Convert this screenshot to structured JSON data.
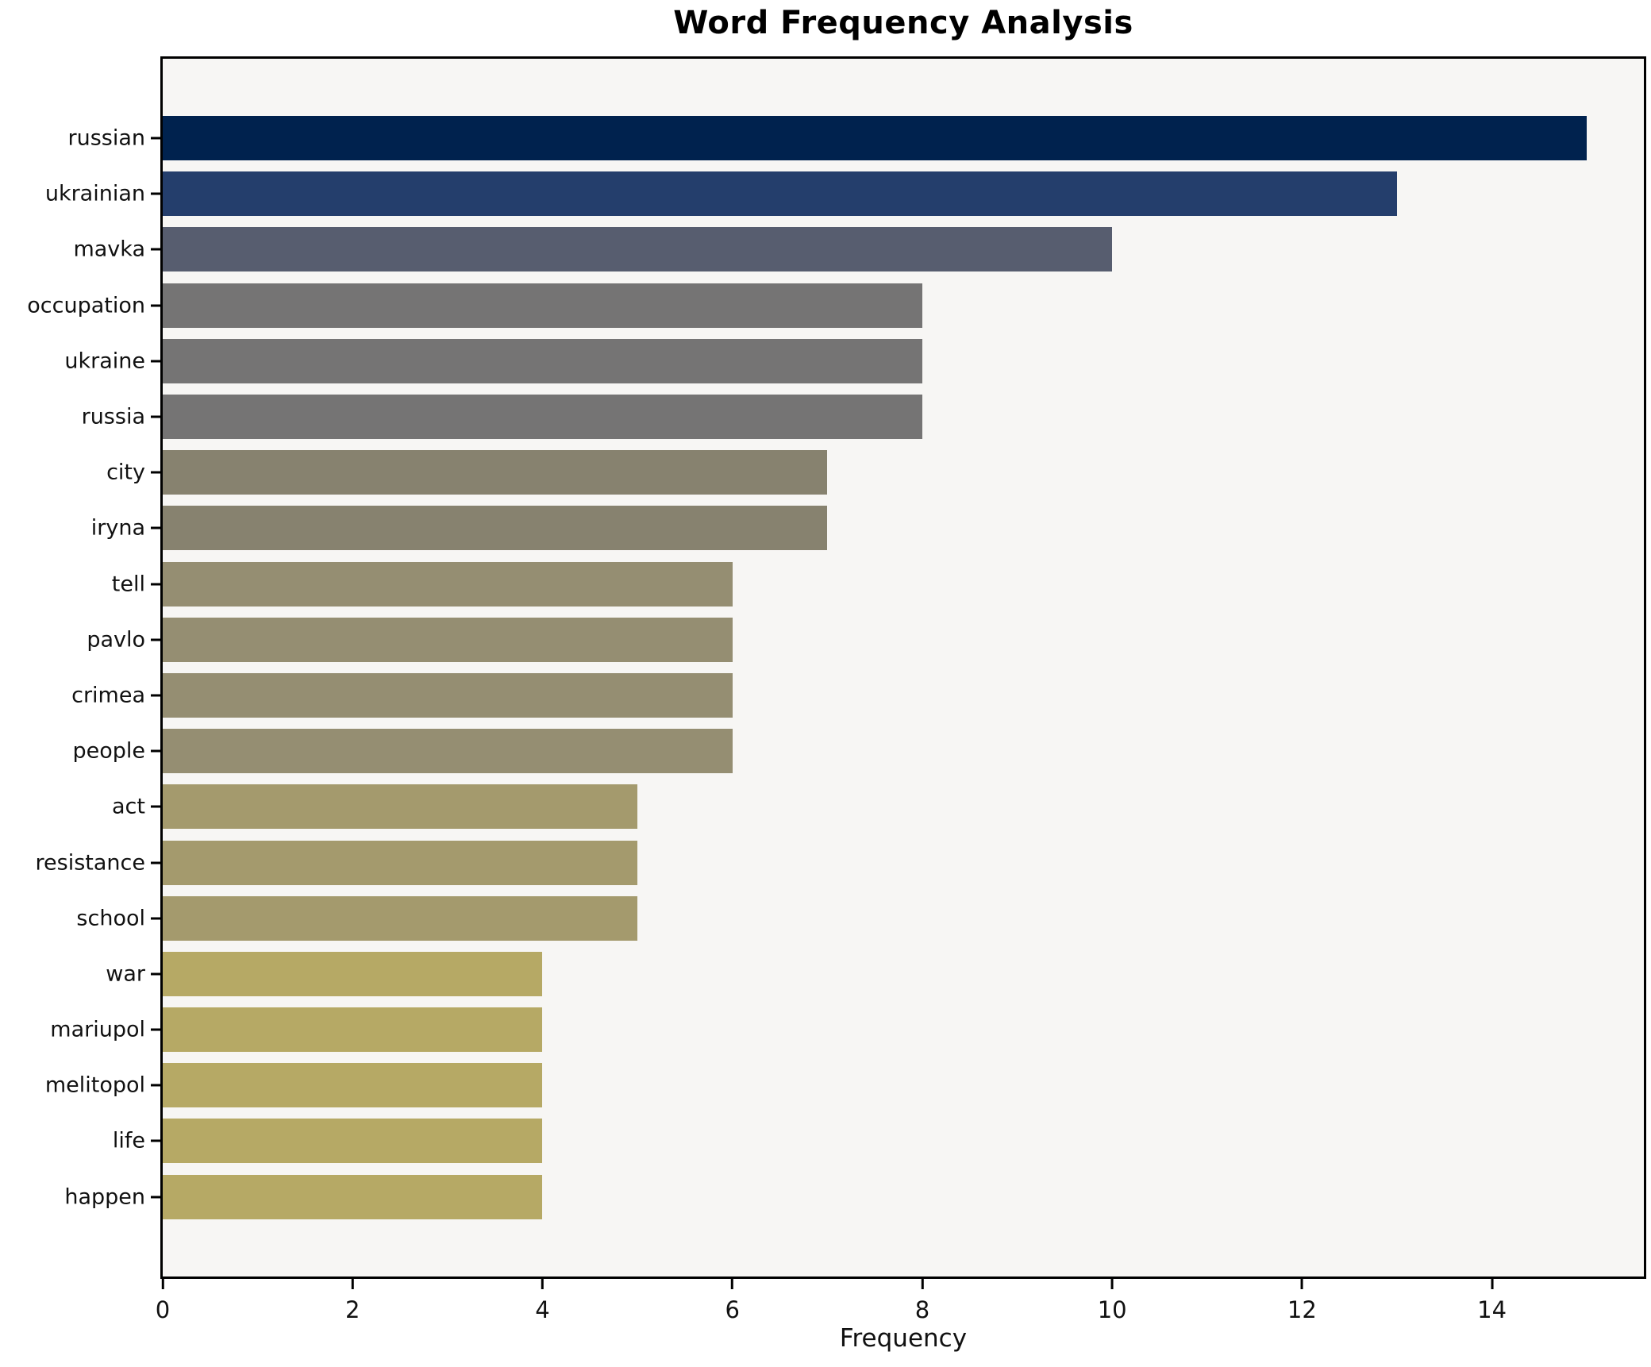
{
  "chart_data": {
    "type": "bar",
    "orientation": "horizontal",
    "title": "Word Frequency Analysis",
    "xlabel": "Frequency",
    "ylabel": "",
    "categories": [
      "russian",
      "ukrainian",
      "mavka",
      "occupation",
      "ukraine",
      "russia",
      "city",
      "iryna",
      "tell",
      "pavlo",
      "crimea",
      "people",
      "act",
      "resistance",
      "school",
      "war",
      "mariupol",
      "melitopol",
      "life",
      "happen"
    ],
    "values": [
      15,
      13,
      10,
      8,
      8,
      8,
      7,
      7,
      6,
      6,
      6,
      6,
      5,
      5,
      5,
      4,
      4,
      4,
      4,
      4
    ],
    "bar_colors": [
      "#00224e",
      "#243e6c",
      "#575d6f",
      "#757474",
      "#757474",
      "#757474",
      "#87826f",
      "#87826f",
      "#958e72",
      "#958e72",
      "#958e72",
      "#958e72",
      "#a49a6d",
      "#a49a6d",
      "#a49a6d",
      "#b6a965",
      "#b6a965",
      "#b6a965",
      "#b6a965",
      "#b6a965"
    ],
    "x_ticks": [
      0,
      2,
      4,
      6,
      8,
      10,
      12,
      14
    ],
    "xlim": [
      0,
      15.6
    ],
    "grid": false,
    "legend": "none",
    "colormap": "cividis",
    "plot_background": "#f7f6f4",
    "figure_background": "#ffffff",
    "spine_color": "#000000",
    "text_color": "#111111"
  }
}
